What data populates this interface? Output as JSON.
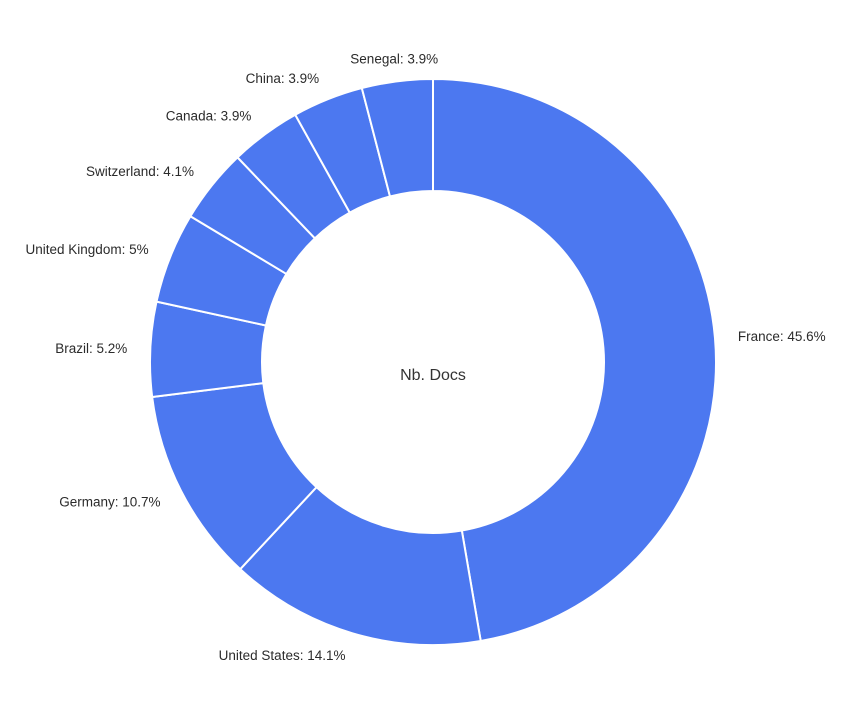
{
  "chart_data": {
    "type": "pie",
    "donut": true,
    "center_label": "Nb. Docs",
    "slice_color": "#4c78f0",
    "border_color": "#ffffff",
    "slices": [
      {
        "label": "France",
        "value": 45.6,
        "display": "France: 45.6%"
      },
      {
        "label": "United States",
        "value": 14.1,
        "display": "United States: 14.1%"
      },
      {
        "label": "Germany",
        "value": 10.7,
        "display": "Germany: 10.7%"
      },
      {
        "label": "Brazil",
        "value": 5.2,
        "display": "Brazil: 5.2%"
      },
      {
        "label": "United Kingdom",
        "value": 5,
        "display": "United Kingdom: 5%"
      },
      {
        "label": "Switzerland",
        "value": 4.1,
        "display": "Switzerland: 4.1%"
      },
      {
        "label": "Canada",
        "value": 3.9,
        "display": "Canada: 3.9%"
      },
      {
        "label": "China",
        "value": 3.9,
        "display": "China: 3.9%"
      },
      {
        "label": "Senegal",
        "value": 3.9,
        "display": "Senegal: 3.9%"
      }
    ]
  }
}
